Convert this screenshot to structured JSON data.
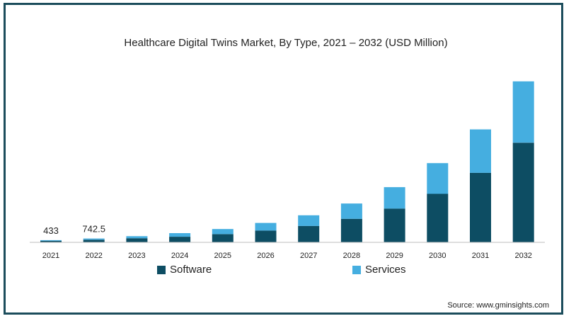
{
  "chart_data": {
    "type": "bar",
    "stacked": true,
    "title": "Healthcare Digital Twins Market, By Type, 2021 – 2032 (USD Million)",
    "categories": [
      "2021",
      "2022",
      "2023",
      "2024",
      "2025",
      "2026",
      "2027",
      "2028",
      "2029",
      "2030",
      "2031",
      "2032"
    ],
    "series": [
      {
        "name": "Software",
        "color": "#0d4d63",
        "values": [
          300,
          500,
          800,
          1100,
          1600,
          2300,
          3200,
          4600,
          6600,
          9500,
          13600,
          19500
        ]
      },
      {
        "name": "Services",
        "color": "#45aee0",
        "values": [
          133,
          242.5,
          400,
          700,
          1000,
          1500,
          2100,
          3000,
          4200,
          6000,
          8500,
          12000
        ]
      }
    ],
    "data_labels": [
      {
        "category": "2021",
        "text": "433"
      },
      {
        "category": "2022",
        "text": "742.5"
      }
    ],
    "ylim": [
      0,
      33000
    ],
    "xlabel": "",
    "ylabel": "",
    "grid": false,
    "legend_position": "bottom"
  },
  "source": "Source: www.gminsights.com"
}
